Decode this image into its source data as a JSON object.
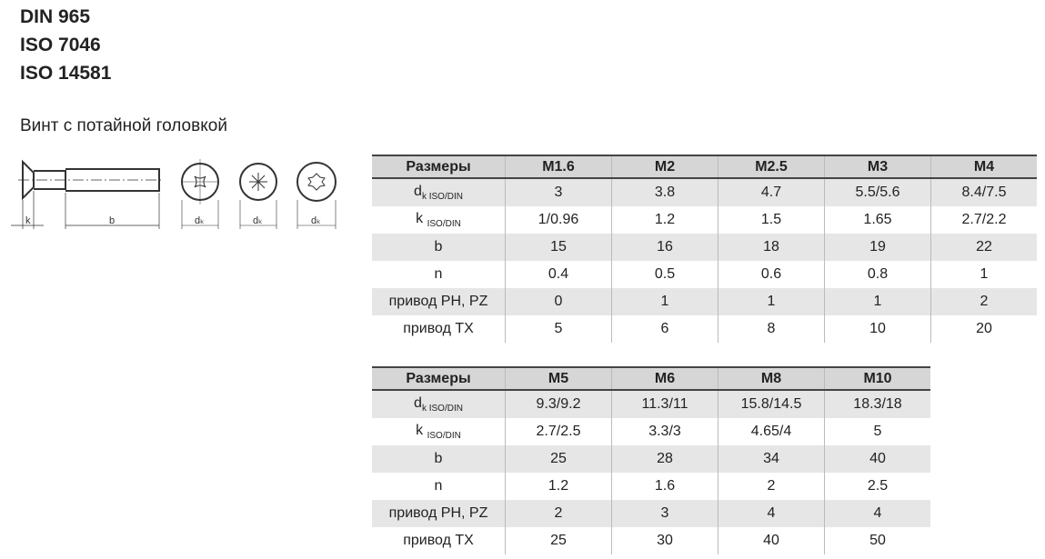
{
  "standards": [
    "DIN 965",
    "ISO 7046",
    "ISO 14581"
  ],
  "subtitle": "Винт с потайной головкой",
  "drawing": {
    "labels": {
      "k": "k",
      "b": "b",
      "dk": "d",
      "dk_sub": "k"
    }
  },
  "row_labels": [
    "Размеры",
    "d",
    "k",
    "b",
    "n",
    "привод PH, PZ",
    "привод TX"
  ],
  "row_subs": {
    "dk_main": "d",
    "dk_sub": "k ISO/DIN",
    "k_main": "k",
    "k_sub": "ISO/DIN"
  },
  "table1": {
    "sizes": [
      "M1.6",
      "M2",
      "M2.5",
      "M3",
      "M4"
    ],
    "rows": [
      [
        "3",
        "3.8",
        "4.7",
        "5.5/5.6",
        "8.4/7.5"
      ],
      [
        "1/0.96",
        "1.2",
        "1.5",
        "1.65",
        "2.7/2.2"
      ],
      [
        "15",
        "16",
        "18",
        "19",
        "22"
      ],
      [
        "0.4",
        "0.5",
        "0.6",
        "0.8",
        "1"
      ],
      [
        "0",
        "1",
        "1",
        "1",
        "2"
      ],
      [
        "5",
        "6",
        "8",
        "10",
        "20"
      ]
    ]
  },
  "table2": {
    "sizes": [
      "M5",
      "M6",
      "M8",
      "M10"
    ],
    "rows": [
      [
        "9.3/9.2",
        "11.3/11",
        "15.8/14.5",
        "18.3/18"
      ],
      [
        "2.7/2.5",
        "3.3/3",
        "4.65/4",
        "5"
      ],
      [
        "25",
        "28",
        "34",
        "40"
      ],
      [
        "1.2",
        "1.6",
        "2",
        "2.5"
      ],
      [
        "2",
        "3",
        "4",
        "4"
      ],
      [
        "25",
        "30",
        "40",
        "50"
      ]
    ]
  }
}
